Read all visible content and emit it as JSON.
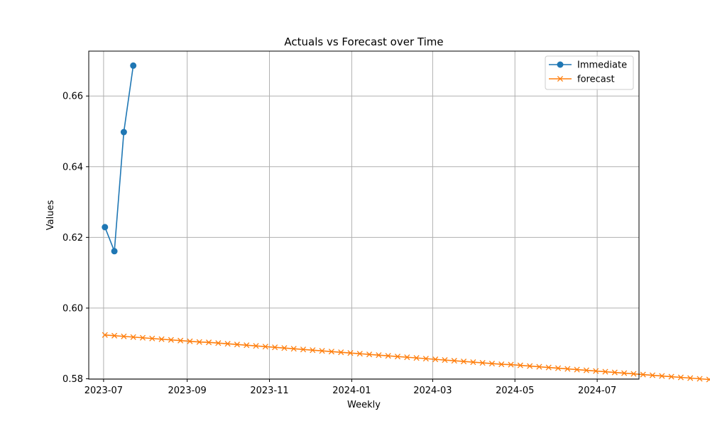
{
  "chart_data": {
    "type": "line",
    "title": "Actuals vs Forecast over Time",
    "xlabel": "Weekly",
    "ylabel": "Values",
    "x_type": "date",
    "xlim": [
      "2023-06-20",
      "2024-08-01"
    ],
    "ylim": [
      0.5799,
      0.6727
    ],
    "x_ticks": [
      "2023-07",
      "2023-09",
      "2023-11",
      "2024-01",
      "2024-03",
      "2024-05",
      "2024-07"
    ],
    "y_ticks": [
      0.58,
      0.6,
      0.62,
      0.64,
      0.66
    ],
    "grid": true,
    "legend_position": "top-right",
    "series": [
      {
        "name": "Immediate",
        "color": "#1f77b4",
        "marker": "circle",
        "points": [
          {
            "x": "2023-07-02",
            "y": 0.6229
          },
          {
            "x": "2023-07-09",
            "y": 0.6161
          },
          {
            "x": "2023-07-16",
            "y": 0.6498
          },
          {
            "x": "2023-07-23",
            "y": 0.6686
          }
        ]
      },
      {
        "name": "forecast",
        "color": "#ff7f0e",
        "marker": "x",
        "start": "2023-07-02",
        "step_days": 7,
        "values": [
          0.5924,
          0.5922,
          0.592,
          0.5918,
          0.5916,
          0.5914,
          0.5912,
          0.591,
          0.5908,
          0.5906,
          0.5904,
          0.5903,
          0.5901,
          0.5899,
          0.5897,
          0.5895,
          0.5893,
          0.5891,
          0.5889,
          0.5887,
          0.5885,
          0.5883,
          0.5881,
          0.5879,
          0.5877,
          0.5875,
          0.5873,
          0.5871,
          0.5869,
          0.5867,
          0.5865,
          0.5863,
          0.5861,
          0.5859,
          0.5857,
          0.5855,
          0.5853,
          0.5851,
          0.5849,
          0.5847,
          0.5845,
          0.5843,
          0.5841,
          0.584,
          0.5838,
          0.5836,
          0.5834,
          0.5832,
          0.583,
          0.5828,
          0.5826,
          0.5824,
          0.5822,
          0.582,
          0.5818,
          0.5816,
          0.5814,
          0.5812,
          0.581,
          0.5808,
          0.5806,
          0.5804,
          0.5802,
          0.58,
          0.5798
        ]
      }
    ]
  }
}
